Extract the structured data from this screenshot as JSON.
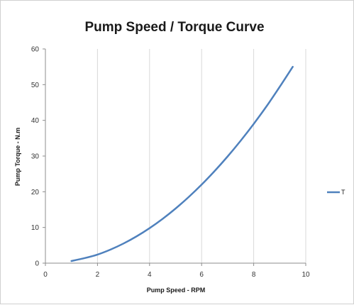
{
  "chart_data": {
    "type": "line",
    "title": "Pump Speed / Torque Curve",
    "xlabel": "Pump Speed - RPM",
    "ylabel": "Pump Torque - N.m",
    "xlim": [
      0,
      10
    ],
    "ylim": [
      0,
      60
    ],
    "xticks": [
      0,
      2,
      4,
      6,
      8,
      10
    ],
    "yticks": [
      0,
      10,
      20,
      30,
      40,
      50,
      60
    ],
    "grid": "vertical",
    "legend_position": "right",
    "series": [
      {
        "name": "T",
        "color": "#4f81bd",
        "x": [
          1,
          1.5,
          2,
          2.5,
          3,
          3.5,
          4,
          4.5,
          5,
          5.5,
          6,
          6.5,
          7,
          7.5,
          8,
          8.5,
          9,
          9.5
        ],
        "y": [
          0.6,
          1.4,
          2.4,
          3.8,
          5.5,
          7.5,
          9.8,
          12.4,
          15.3,
          18.5,
          22.0,
          25.8,
          29.9,
          34.3,
          39.0,
          44.0,
          49.4,
          55.0
        ]
      }
    ]
  }
}
